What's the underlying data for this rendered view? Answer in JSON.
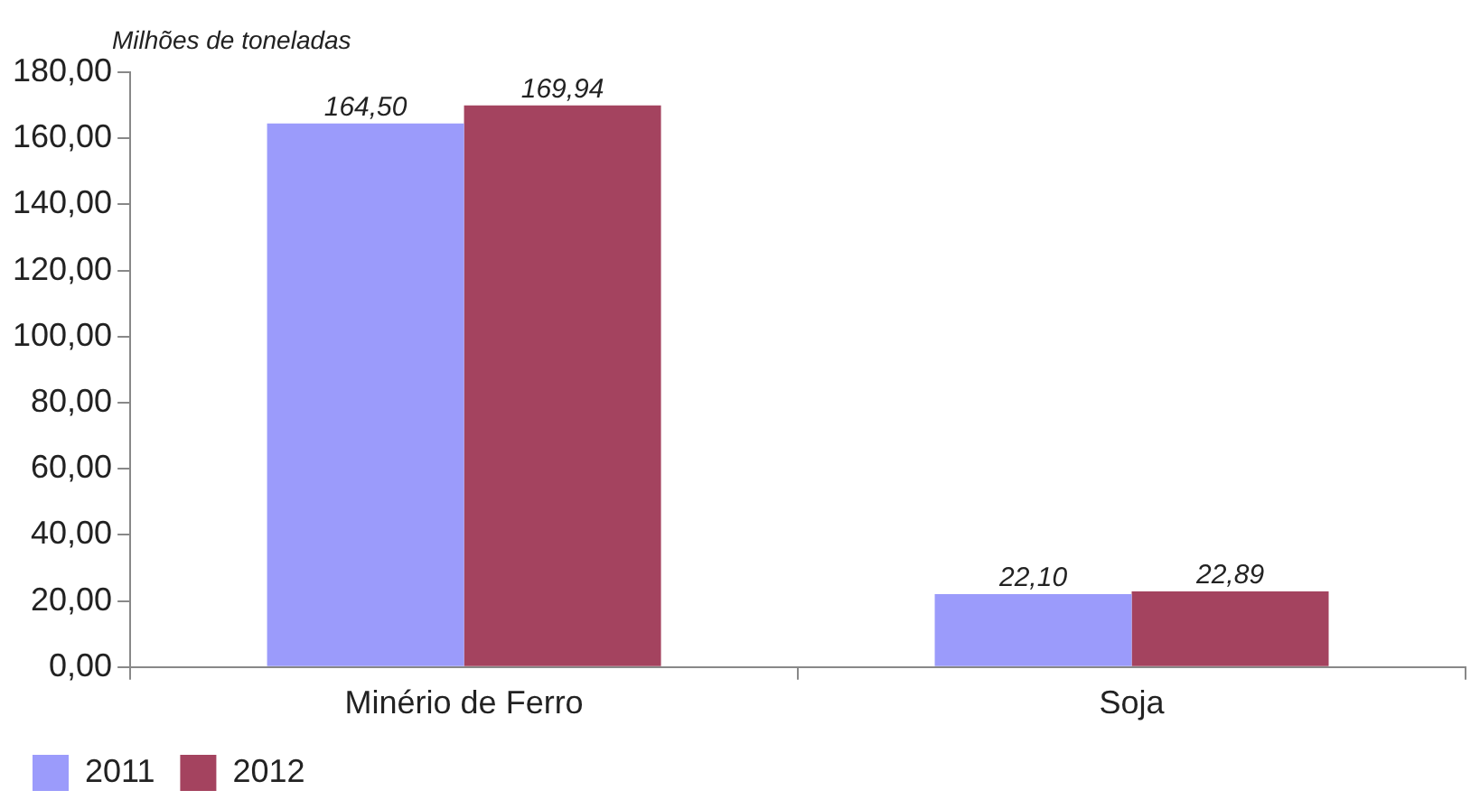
{
  "chart_data": {
    "type": "bar",
    "ylabel": "Milhões de toneladas",
    "categories": [
      "Minério de Ferro",
      "Soja"
    ],
    "series": [
      {
        "name": "2011",
        "color": "#9b9bfb",
        "values": [
          164.5,
          22.1
        ],
        "value_labels": [
          "164,50",
          "22,10"
        ]
      },
      {
        "name": "2012",
        "color": "#a4435f",
        "values": [
          169.94,
          22.89
        ],
        "value_labels": [
          "169,94",
          "22,89"
        ]
      }
    ],
    "ylim": [
      0,
      180
    ],
    "yticks": [
      {
        "value": 0,
        "label": "0,00"
      },
      {
        "value": 20,
        "label": "20,00"
      },
      {
        "value": 40,
        "label": "40,00"
      },
      {
        "value": 60,
        "label": "60,00"
      },
      {
        "value": 80,
        "label": "80,00"
      },
      {
        "value": 100,
        "label": "100,00"
      },
      {
        "value": 120,
        "label": "120,00"
      },
      {
        "value": 140,
        "label": "140,00"
      },
      {
        "value": 160,
        "label": "160,00"
      },
      {
        "value": 180,
        "label": "180,00"
      }
    ],
    "grid": false,
    "legend": "bottom left"
  }
}
